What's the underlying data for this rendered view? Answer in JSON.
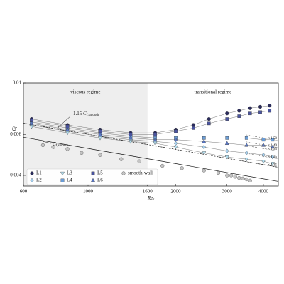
{
  "chart_data": {
    "type": "scatter",
    "xscale": "log",
    "yscale": "log",
    "xlabel": {
      "symbol": "Re",
      "subscript": "τ"
    },
    "ylabel": {
      "symbol": "C",
      "subscript": "f"
    },
    "xlim": [
      600,
      4500
    ],
    "ylim": [
      0.0036,
      0.01
    ],
    "xticks": [
      600,
      1000,
      1600,
      2000,
      3000,
      4000
    ],
    "yticks": [
      0.004,
      0.006,
      0.01
    ],
    "legend": "lower left",
    "regions": [
      {
        "label": "viscous regime",
        "xrange": [
          600,
          1600
        ],
        "color": "#eeeeee"
      },
      {
        "label": "transitional regime",
        "xrange": [
          1600,
          4500
        ]
      }
    ],
    "reference_lines": [
      {
        "label": {
          "coef": "",
          "symbol": "C",
          "subscript": "f,smooth"
        },
        "x": [
          600,
          4500
        ],
        "values": [
          0.00584,
          0.00377
        ],
        "style": "solid"
      },
      {
        "label": {
          "coef": "1.15 ",
          "symbol": "C",
          "subscript": "f,smooth"
        },
        "x": [
          600,
          4500
        ],
        "values": [
          0.00672,
          0.00434
        ],
        "style": "dashed"
      }
    ],
    "multiplier_lines": {
      "x": [
        3500,
        4500
      ],
      "labels": [
        "× 1.50",
        "× 1.40",
        "× 1.35",
        "× 1.25",
        "× 1.15"
      ],
      "values": [
        0.00566,
        0.00528,
        0.00509,
        0.00471,
        0.00434
      ]
    },
    "series": [
      {
        "name": "L1",
        "color": "#2b2c5c",
        "marker": "circle",
        "fit_line": true,
        "x": [
          640,
          850,
          1100,
          1400,
          1700,
          2000,
          2300,
          2600,
          3000,
          3300,
          3600,
          3900,
          4200
        ],
        "values": [
          0.007,
          0.0066,
          0.0063,
          0.0061,
          0.0061,
          0.0063,
          0.0066,
          0.007,
          0.0074,
          0.0076,
          0.0078,
          0.0079,
          0.008
        ]
      },
      {
        "name": "L2",
        "color": "#a6d0ee",
        "marker": "diamond",
        "fit_line": true,
        "x": [
          640,
          850,
          1100,
          1400,
          1700,
          2000,
          2500,
          3000,
          3500,
          4000,
          4300
        ],
        "values": [
          0.0066,
          0.0062,
          0.0059,
          0.0057,
          0.0056,
          0.0055,
          0.0053,
          0.0051,
          0.005,
          0.0049,
          0.0048
        ]
      },
      {
        "name": "L3",
        "color": "#b3e0f2",
        "marker": "triangle-down",
        "fit_line": true,
        "x": [
          640,
          850,
          1100,
          1400,
          1700,
          2000,
          2500,
          3000,
          3500,
          4000,
          4300
        ],
        "values": [
          0.0065,
          0.0061,
          0.0058,
          0.0056,
          0.0055,
          0.0053,
          0.005,
          0.0048,
          0.0047,
          0.0046,
          0.0045
        ]
      },
      {
        "name": "L4",
        "color": "#6b9ed8",
        "marker": "square",
        "fit_line": true,
        "x": [
          640,
          850,
          1100,
          1400,
          1700,
          2000,
          2500,
          3000,
          3500,
          4000,
          4300
        ],
        "values": [
          0.0068,
          0.0064,
          0.0061,
          0.0059,
          0.0058,
          0.0058,
          0.0058,
          0.0058,
          0.0058,
          0.0057,
          0.0057
        ]
      },
      {
        "name": "L5",
        "color": "#4a54a0",
        "marker": "square",
        "fit_line": true,
        "x": [
          640,
          850,
          1100,
          1400,
          1700,
          2000,
          2300,
          2600,
          3000,
          3300,
          3600,
          3900,
          4200
        ],
        "values": [
          0.0069,
          0.0065,
          0.0062,
          0.006,
          0.006,
          0.0062,
          0.0064,
          0.0067,
          0.007,
          0.0072,
          0.0074,
          0.0075,
          0.0076
        ]
      },
      {
        "name": "L6",
        "color": "#5876c6",
        "marker": "triangle-up",
        "fit_line": true,
        "x": [
          640,
          850,
          1100,
          1400,
          1700,
          2000,
          2500,
          3000,
          3500,
          4000,
          4300
        ],
        "values": [
          0.0067,
          0.0063,
          0.006,
          0.0058,
          0.0057,
          0.0057,
          0.0056,
          0.0055,
          0.0054,
          0.0054,
          0.0053
        ]
      },
      {
        "name": "smooth-wall",
        "color": "#c4c4c4",
        "marker": "circle",
        "fit_line": false,
        "x": [
          700,
          760,
          850,
          950,
          1100,
          1300,
          1500,
          1800,
          2100,
          2500,
          2800,
          3000,
          3100,
          3200,
          3300,
          3400,
          3500,
          3600
        ],
        "values": [
          0.0054,
          0.0053,
          0.0052,
          0.005,
          0.0049,
          0.0047,
          0.0046,
          0.0044,
          0.0043,
          0.0042,
          0.0041,
          0.004,
          0.004,
          0.00395,
          0.0039,
          0.00388,
          0.00385,
          0.0038
        ]
      }
    ]
  }
}
